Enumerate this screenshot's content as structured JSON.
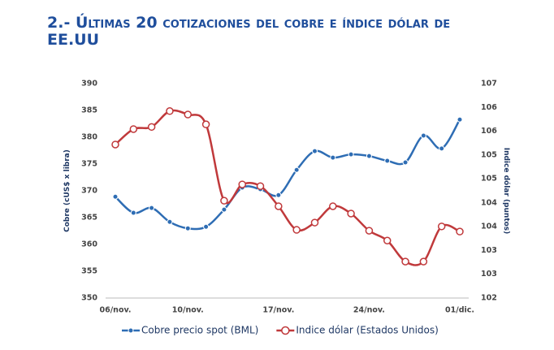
{
  "chart_data": {
    "type": "line",
    "title": "2.- Últimas 20 cotizaciones del cobre e índice dólar de EE.UU",
    "ylabel": "Cobre (cUS$ x libra)",
    "y2label": "Indice dólar (puntos)",
    "categories": [
      "06/nov.",
      null,
      null,
      null,
      "10/nov.",
      null,
      null,
      null,
      null,
      "17/nov.",
      null,
      null,
      null,
      null,
      "24/nov.",
      null,
      null,
      null,
      null,
      "01/dic."
    ],
    "series": [
      {
        "name": "Cobre precio spot (BML)",
        "color": "#2e6db4",
        "axis": "y",
        "values": [
          368.9,
          365.9,
          366.8,
          364.2,
          363.0,
          363.3,
          366.5,
          370.6,
          370.3,
          369.2,
          373.9,
          377.4,
          376.2,
          376.8,
          376.5,
          375.6,
          375.3,
          380.3,
          377.9,
          383.3
        ]
      },
      {
        "name": "Indice dólar (Estados Unidos)",
        "color": "#c0393b",
        "axis": "y2",
        "values": [
          105.58,
          105.94,
          105.99,
          106.36,
          106.28,
          106.05,
          104.27,
          104.65,
          104.61,
          104.14,
          103.59,
          103.76,
          104.14,
          103.97,
          103.57,
          103.34,
          102.85,
          102.85,
          103.67,
          103.55
        ]
      }
    ],
    "ylim": [
      350,
      390
    ],
    "yticks": [
      350,
      355,
      360,
      365,
      370,
      375,
      380,
      385,
      390
    ],
    "y2lim": [
      102,
      107
    ],
    "y2ticks": [
      102,
      {
        "value": 102.56,
        "label": "103"
      },
      {
        "value": 103.11,
        "label": "103"
      },
      {
        "value": 103.67,
        "label": "104"
      },
      {
        "value": 104.22,
        "label": "104"
      },
      {
        "value": 104.78,
        "label": "105"
      },
      {
        "value": 105.33,
        "label": "105"
      },
      {
        "value": 105.89,
        "label": "106"
      },
      {
        "value": 106.44,
        "label": "106"
      },
      107
    ],
    "legend": "bottom"
  }
}
